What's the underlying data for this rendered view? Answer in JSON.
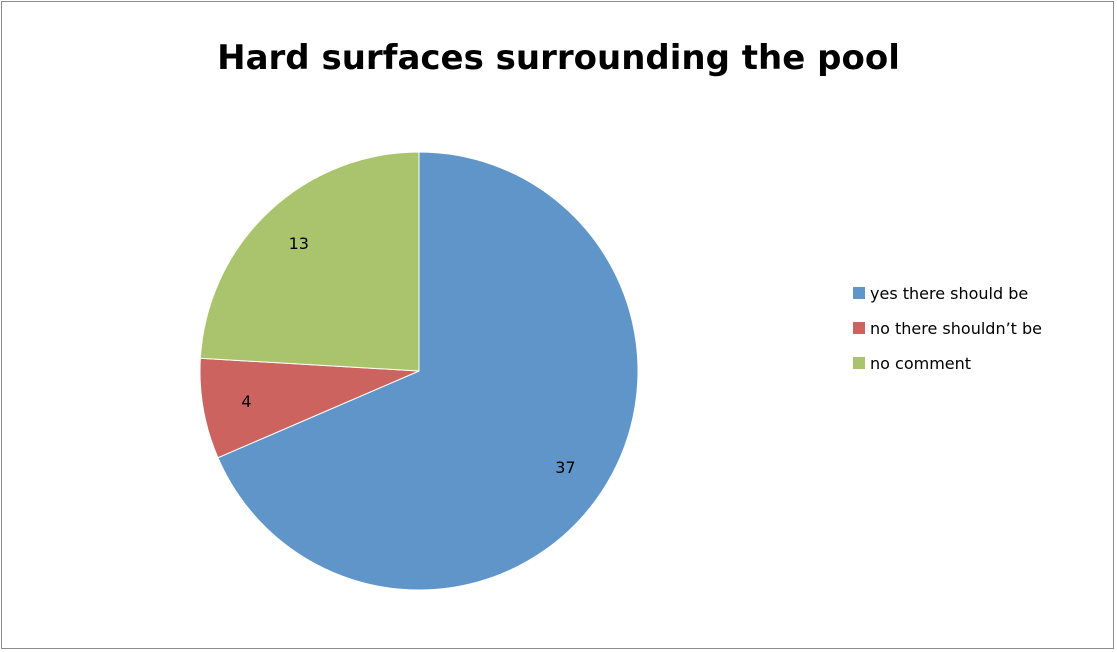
{
  "chart_data": {
    "type": "pie",
    "title": "Hard surfaces surrounding the pool",
    "categories": [
      "yes there should be",
      "no there shouldn’t be",
      "no comment"
    ],
    "values": [
      37,
      4,
      13
    ],
    "colors": [
      "#5f95c9",
      "#cc635e",
      "#a9c46d"
    ],
    "data_labels": [
      "37",
      "4",
      "13"
    ],
    "start_angle_deg": 0,
    "direction": "clockwise",
    "legend_placement": "right"
  }
}
